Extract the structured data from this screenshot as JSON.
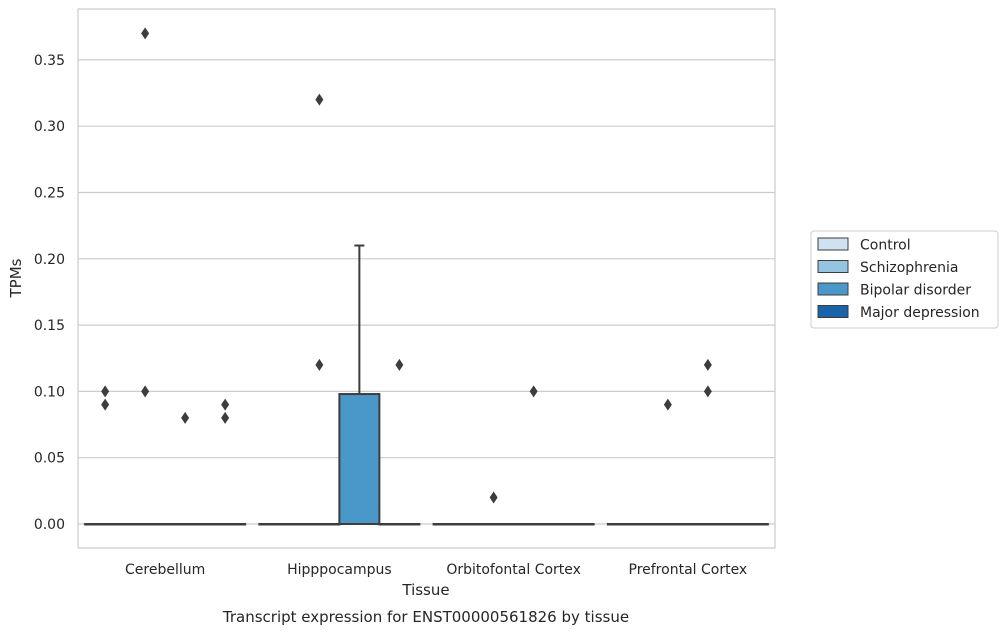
{
  "chart_data": {
    "type": "box",
    "title": "Transcript expression for ENST00000561826 by tissue",
    "xlabel": "Tissue",
    "ylabel": "TPMs",
    "ylim": [
      -0.018,
      0.389
    ],
    "yticks": [
      "0.00",
      "0.05",
      "0.10",
      "0.15",
      "0.20",
      "0.25",
      "0.30",
      "0.35"
    ],
    "categories": [
      "Cerebellum",
      "Hipppocampus",
      "Orbitofontal Cortex",
      "Prefrontal Cortex"
    ],
    "grid": true,
    "legend_position": "right",
    "series": [
      {
        "name": "Control",
        "color": "#d0e1f2",
        "boxes": [
          {
            "q1": 0,
            "median": 0,
            "q3": 0,
            "whislo": 0,
            "whishi": 0,
            "fliers": [
              0.1,
              0.09
            ]
          },
          {
            "q1": 0,
            "median": 0,
            "q3": 0,
            "whislo": 0,
            "whishi": 0,
            "fliers": []
          },
          {
            "q1": 0,
            "median": 0,
            "q3": 0,
            "whislo": 0,
            "whishi": 0,
            "fliers": []
          },
          {
            "q1": 0,
            "median": 0,
            "q3": 0,
            "whislo": 0,
            "whishi": 0,
            "fliers": []
          }
        ]
      },
      {
        "name": "Schizophrenia",
        "color": "#94c4df",
        "boxes": [
          {
            "q1": 0,
            "median": 0,
            "q3": 0,
            "whislo": 0,
            "whishi": 0,
            "fliers": [
              0.37,
              0.1
            ]
          },
          {
            "q1": 0,
            "median": 0,
            "q3": 0,
            "whislo": 0,
            "whishi": 0,
            "fliers": [
              0.32,
              0.12
            ]
          },
          {
            "q1": 0,
            "median": 0,
            "q3": 0,
            "whislo": 0,
            "whishi": 0,
            "fliers": [
              0.02
            ]
          },
          {
            "q1": 0,
            "median": 0,
            "q3": 0,
            "whislo": 0,
            "whishi": 0,
            "fliers": [
              0.09
            ]
          }
        ]
      },
      {
        "name": "Bipolar disorder",
        "color": "#4a98c9",
        "boxes": [
          {
            "q1": 0,
            "median": 0,
            "q3": 0,
            "whislo": 0,
            "whishi": 0,
            "fliers": [
              0.08
            ]
          },
          {
            "q1": 0,
            "median": 0,
            "q3": 0.098,
            "whislo": 0,
            "whishi": 0.21,
            "fliers": []
          },
          {
            "q1": 0,
            "median": 0,
            "q3": 0,
            "whislo": 0,
            "whishi": 0,
            "fliers": [
              0.1
            ]
          },
          {
            "q1": 0,
            "median": 0,
            "q3": 0,
            "whislo": 0,
            "whishi": 0,
            "fliers": [
              0.12,
              0.1
            ]
          }
        ]
      },
      {
        "name": "Major depression",
        "color": "#1764ab",
        "boxes": [
          {
            "q1": 0,
            "median": 0,
            "q3": 0,
            "whislo": 0,
            "whishi": 0,
            "fliers": [
              0.09,
              0.08
            ]
          },
          {
            "q1": 0,
            "median": 0,
            "q3": 0,
            "whislo": 0,
            "whishi": 0,
            "fliers": [
              0.12
            ]
          },
          {
            "q1": 0,
            "median": 0,
            "q3": 0,
            "whislo": 0,
            "whishi": 0,
            "fliers": []
          },
          {
            "q1": 0,
            "median": 0,
            "q3": 0,
            "whislo": 0,
            "whishi": 0,
            "fliers": []
          }
        ]
      }
    ]
  }
}
